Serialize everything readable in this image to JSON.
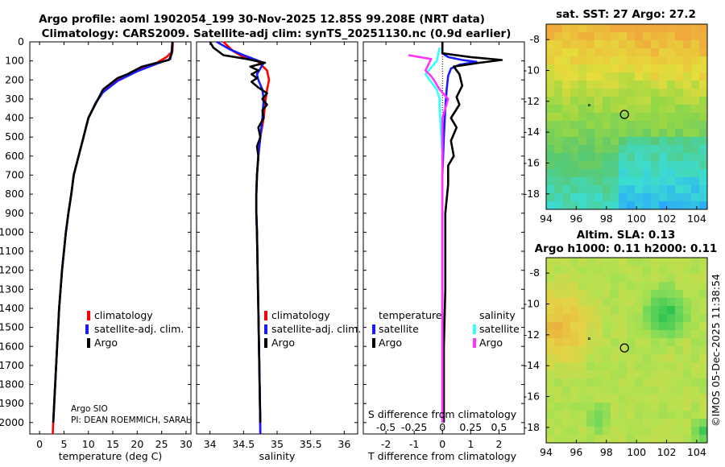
{
  "titles": {
    "line1": "Argo profile: aoml 1902054_199 30-Nov-2025 12.85S 99.208E (NRT data)",
    "line2": "Climatology: CARS2009. Satellite-adj clim: synTS_20251130.nc (0.9d earlier)",
    "sst": "sat. SST: 27 Argo: 27.2",
    "sla1": "Altim. SLA: 0.13",
    "sla2": "Argo h1000: 0.11 h2000: 0.11"
  },
  "credit": {
    "line1": "Argo SIO",
    "line2": "PI: DEAN ROEMMICH, SARAH"
  },
  "watermark": "©IMOS 05-Dec-2025 11:38:54",
  "colors": {
    "climatology": "#ff0000",
    "satellite": "#1a1aff",
    "argo": "#000000",
    "sal_sat": "#33ffff",
    "sal_argo": "#ff33ff"
  },
  "chart_data": [
    {
      "type": "line",
      "name": "temperature",
      "xlabel": "temperature (deg C)",
      "xlim": [
        -2,
        31
      ],
      "xticks": [
        "0",
        "5",
        "10",
        "15",
        "20",
        "25",
        "30"
      ],
      "ylim": [
        2060,
        0
      ],
      "yticks": [
        "0",
        "100",
        "200",
        "300",
        "400",
        "500",
        "600",
        "700",
        "800",
        "900",
        "1000",
        "1100",
        "1200",
        "1300",
        "1400",
        "1500",
        "1600",
        "1700",
        "1800",
        "1900",
        "2000"
      ],
      "legend": [
        "climatology",
        "satellite-adj. clim.",
        "Argo"
      ],
      "legend_position": "lower-right",
      "series": [
        {
          "name": "climatology",
          "color": "#ff0000",
          "points": [
            [
              27.3,
              0
            ],
            [
              27.2,
              50
            ],
            [
              26,
              80
            ],
            [
              24,
              110
            ],
            [
              20,
              150
            ],
            [
              16,
              200
            ],
            [
              13,
              260
            ],
            [
              11.5,
              320
            ],
            [
              10,
              400
            ],
            [
              9,
              500
            ],
            [
              8,
              600
            ],
            [
              7,
              700
            ],
            [
              6.5,
              800
            ],
            [
              5.9,
              900
            ],
            [
              5.4,
              1000
            ],
            [
              5,
              1100
            ],
            [
              4.6,
              1200
            ],
            [
              4.3,
              1300
            ],
            [
              4,
              1400
            ],
            [
              3.8,
              1500
            ],
            [
              3.6,
              1600
            ],
            [
              3.4,
              1700
            ],
            [
              3.2,
              1800
            ],
            [
              3,
              1900
            ],
            [
              2.8,
              2000
            ],
            [
              2.7,
              2060
            ]
          ]
        },
        {
          "name": "satellite-adj. clim.",
          "color": "#1a1aff",
          "points": [
            [
              27.2,
              0
            ],
            [
              27,
              60
            ],
            [
              26.8,
              90
            ],
            [
              24,
              115
            ],
            [
              20,
              155
            ],
            [
              16,
              205
            ],
            [
              13,
              265
            ],
            [
              11.5,
              320
            ],
            [
              10,
              400
            ],
            [
              9,
              500
            ],
            [
              8,
              600
            ],
            [
              7,
              700
            ],
            [
              6.5,
              800
            ],
            [
              5.9,
              900
            ],
            [
              5.4,
              1000
            ],
            [
              5,
              1100
            ],
            [
              4.6,
              1200
            ],
            [
              4.3,
              1300
            ],
            [
              4,
              1400
            ],
            [
              3.8,
              1500
            ],
            [
              3.6,
              1600
            ],
            [
              3.4,
              1700
            ],
            [
              3.2,
              1800
            ],
            [
              3,
              1900
            ],
            [
              2.8,
              2000
            ]
          ]
        },
        {
          "name": "Argo",
          "color": "#000000",
          "points": [
            [
              27.2,
              0
            ],
            [
              27.1,
              60
            ],
            [
              26.5,
              95
            ],
            [
              24,
              110
            ],
            [
              21,
              130
            ],
            [
              18,
              170
            ],
            [
              16,
              190
            ],
            [
              15,
              210
            ],
            [
              13,
              250
            ],
            [
              12,
              300
            ],
            [
              11,
              350
            ],
            [
              10,
              400
            ],
            [
              9,
              500
            ],
            [
              8,
              600
            ],
            [
              7,
              700
            ],
            [
              6.5,
              800
            ],
            [
              5.9,
              900
            ],
            [
              5.4,
              1000
            ],
            [
              5,
              1100
            ],
            [
              4.6,
              1200
            ],
            [
              4.3,
              1300
            ],
            [
              4,
              1400
            ],
            [
              3.8,
              1500
            ],
            [
              3.6,
              1600
            ],
            [
              3.4,
              1700
            ],
            [
              3.2,
              1800
            ],
            [
              3,
              1900
            ],
            [
              2.8,
              2000
            ]
          ]
        }
      ]
    },
    {
      "type": "line",
      "name": "salinity",
      "xlabel": "salinity",
      "xlim": [
        33.8,
        36.2
      ],
      "xticks": [
        "34",
        "34.5",
        "35",
        "35.5",
        "36"
      ],
      "ylim": [
        2060,
        0
      ],
      "legend": [
        "climatology",
        "satellite-adj. clim.",
        "Argo"
      ],
      "legend_position": "lower-right",
      "series": [
        {
          "name": "climatology",
          "color": "#ff0000",
          "points": [
            [
              34.2,
              0
            ],
            [
              34.35,
              50
            ],
            [
              34.5,
              80
            ],
            [
              34.7,
              100
            ],
            [
              34.85,
              150
            ],
            [
              34.88,
              200
            ],
            [
              34.85,
              250
            ],
            [
              34.83,
              300
            ],
            [
              34.8,
              400
            ],
            [
              34.75,
              500
            ],
            [
              34.72,
              600
            ],
            [
              34.7,
              700
            ],
            [
              34.69,
              800
            ],
            [
              34.69,
              900
            ],
            [
              34.7,
              1000
            ],
            [
              34.71,
              1200
            ],
            [
              34.72,
              1400
            ],
            [
              34.73,
              1600
            ],
            [
              34.74,
              1800
            ],
            [
              34.75,
              2060
            ]
          ]
        },
        {
          "name": "satellite-adj. clim.",
          "color": "#1a1aff",
          "points": [
            [
              34.1,
              0
            ],
            [
              34.3,
              40
            ],
            [
              34.5,
              70
            ],
            [
              34.8,
              110
            ],
            [
              34.75,
              140
            ],
            [
              34.7,
              170
            ],
            [
              34.72,
              200
            ],
            [
              34.78,
              250
            ],
            [
              34.8,
              300
            ],
            [
              34.78,
              400
            ],
            [
              34.75,
              500
            ],
            [
              34.72,
              600
            ],
            [
              34.7,
              700
            ],
            [
              34.69,
              800
            ],
            [
              34.69,
              900
            ],
            [
              34.7,
              1000
            ],
            [
              34.71,
              1200
            ],
            [
              34.72,
              1400
            ],
            [
              34.73,
              1600
            ],
            [
              34.74,
              1800
            ],
            [
              34.75,
              2060
            ]
          ]
        },
        {
          "name": "Argo",
          "color": "#000000",
          "points": [
            [
              34.0,
              0
            ],
            [
              34.05,
              30
            ],
            [
              34.2,
              70
            ],
            [
              34.55,
              90
            ],
            [
              34.82,
              110
            ],
            [
              34.6,
              130
            ],
            [
              34.72,
              150
            ],
            [
              34.62,
              170
            ],
            [
              34.7,
              190
            ],
            [
              34.62,
              210
            ],
            [
              34.72,
              240
            ],
            [
              34.85,
              270
            ],
            [
              34.78,
              300
            ],
            [
              34.85,
              330
            ],
            [
              34.78,
              360
            ],
            [
              34.8,
              400
            ],
            [
              34.72,
              450
            ],
            [
              34.75,
              500
            ],
            [
              34.7,
              550
            ],
            [
              34.72,
              600
            ],
            [
              34.7,
              700
            ],
            [
              34.69,
              800
            ],
            [
              34.69,
              900
            ],
            [
              34.7,
              1000
            ],
            [
              34.71,
              1200
            ],
            [
              34.72,
              1400
            ],
            [
              34.73,
              1600
            ],
            [
              34.74,
              1800
            ],
            [
              34.75,
              2000
            ]
          ]
        }
      ]
    },
    {
      "type": "line",
      "name": "difference from climatology",
      "xlabel": "T difference from climatology",
      "xlabel_top": "S difference from climatology",
      "xlim": [
        -2.8,
        2.9
      ],
      "xticks": [
        "-2",
        "-1",
        "0",
        "1",
        "2"
      ],
      "xticks_top": [
        "-0.5",
        "-0.25",
        "0",
        "0.25",
        "0.5"
      ],
      "ylim": [
        2060,
        0
      ],
      "legend_temperature": [
        "temperature",
        "satellite",
        "Argo"
      ],
      "legend_salinity": [
        "salinity",
        "satellite",
        "Argo"
      ],
      "series": [
        {
          "name": "temperature satellite",
          "color": "#1a1aff",
          "points": [
            [
              0,
              0
            ],
            [
              0,
              60
            ],
            [
              0.2,
              80
            ],
            [
              0.7,
              95
            ],
            [
              1.2,
              105
            ],
            [
              0.6,
              120
            ],
            [
              0.3,
              140
            ],
            [
              0.2,
              180
            ],
            [
              0.15,
              250
            ],
            [
              0.1,
              350
            ],
            [
              0.05,
              500
            ],
            [
              0,
              700
            ],
            [
              0,
              1000
            ],
            [
              0,
              1500
            ],
            [
              0,
              2000
            ]
          ]
        },
        {
          "name": "temperature Argo",
          "color": "#000000",
          "points": [
            [
              0,
              0
            ],
            [
              0,
              60
            ],
            [
              1.0,
              80
            ],
            [
              2.1,
              95
            ],
            [
              1.3,
              110
            ],
            [
              0.4,
              130
            ],
            [
              0.6,
              170
            ],
            [
              0.7,
              230
            ],
            [
              0.5,
              290
            ],
            [
              0.6,
              330
            ],
            [
              0.3,
              400
            ],
            [
              0.5,
              450
            ],
            [
              0.3,
              520
            ],
            [
              0.4,
              600
            ],
            [
              0.2,
              650
            ],
            [
              0.2,
              750
            ],
            [
              0.1,
              900
            ],
            [
              0.1,
              1100
            ],
            [
              0.1,
              1300
            ],
            [
              0.05,
              1600
            ],
            [
              0.05,
              2000
            ]
          ]
        },
        {
          "name": "salinity satellite",
          "color": "#33ffff",
          "points": [
            [
              -0.1,
              30
            ],
            [
              -0.2,
              100
            ],
            [
              -0.6,
              170
            ],
            [
              -0.2,
              250
            ],
            [
              -0.1,
              300
            ],
            [
              -0.1,
              350
            ],
            [
              0,
              600
            ],
            [
              0,
              1000
            ],
            [
              0,
              1500
            ],
            [
              0,
              2000
            ]
          ]
        },
        {
          "name": "salinity Argo",
          "color": "#ff33ff",
          "points": [
            [
              -1.2,
              70
            ],
            [
              -0.4,
              90
            ],
            [
              -0.5,
              120
            ],
            [
              -0.6,
              150
            ],
            [
              -0.4,
              180
            ],
            [
              -0.3,
              200
            ],
            [
              -0.1,
              250
            ],
            [
              0.2,
              300
            ],
            [
              0.1,
              350
            ],
            [
              0,
              400
            ],
            [
              0,
              600
            ],
            [
              0,
              1000
            ],
            [
              0,
              1500
            ],
            [
              0,
              2000
            ]
          ]
        }
      ]
    },
    {
      "type": "heatmap",
      "name": "sat. SST map",
      "xlim": [
        94,
        104.7
      ],
      "ylim": [
        -19,
        -7
      ],
      "xticks": [
        "94",
        "96",
        "98",
        "100",
        "102",
        "104"
      ],
      "yticks": [
        "-8",
        "-10",
        "-12",
        "-14",
        "-16",
        "-18"
      ],
      "marker": {
        "lon": 99.2,
        "lat": -12.85
      }
    },
    {
      "type": "heatmap",
      "name": "altimetry SLA map",
      "xlim": [
        94,
        104.7
      ],
      "ylim": [
        -19,
        -7
      ],
      "xticks": [
        "94",
        "96",
        "98",
        "100",
        "102",
        "104"
      ],
      "yticks": [
        "-8",
        "-10",
        "-12",
        "-14",
        "-16",
        "-18"
      ],
      "marker": {
        "lon": 99.2,
        "lat": -12.85
      }
    }
  ]
}
